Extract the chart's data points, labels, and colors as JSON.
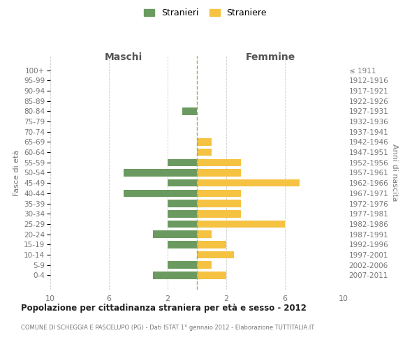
{
  "age_groups": [
    "100+",
    "95-99",
    "90-94",
    "85-89",
    "80-84",
    "75-79",
    "70-74",
    "65-69",
    "60-64",
    "55-59",
    "50-54",
    "45-49",
    "40-44",
    "35-39",
    "30-34",
    "25-29",
    "20-24",
    "15-19",
    "10-14",
    "5-9",
    "0-4"
  ],
  "birth_years": [
    "≤ 1911",
    "1912-1916",
    "1917-1921",
    "1922-1926",
    "1927-1931",
    "1932-1936",
    "1937-1941",
    "1942-1946",
    "1947-1951",
    "1952-1956",
    "1957-1961",
    "1962-1966",
    "1967-1971",
    "1972-1976",
    "1977-1981",
    "1982-1986",
    "1987-1991",
    "1992-1996",
    "1997-2001",
    "2002-2006",
    "2007-2011"
  ],
  "maschi": [
    0,
    0,
    0,
    0,
    1,
    0,
    0,
    0,
    0,
    2,
    5,
    2,
    5,
    2,
    2,
    2,
    3,
    2,
    0,
    2,
    3
  ],
  "femmine": [
    0,
    0,
    0,
    0,
    0,
    0,
    0,
    1,
    1,
    3,
    3,
    7,
    3,
    3,
    3,
    6,
    1,
    2,
    2.5,
    1,
    2
  ],
  "color_maschi": "#6a9a5f",
  "color_femmine": "#f5c242",
  "title": "Popolazione per cittadinanza straniera per età e sesso - 2012",
  "subtitle": "COMUNE DI SCHEGGIA E PASCELUPO (PG) - Dati ISTAT 1° gennaio 2012 - Elaborazione TUTTITALIA.IT",
  "ylabel_left": "Fasce di età",
  "ylabel_right": "Anni di nascita",
  "header_left": "Maschi",
  "header_right": "Femmine",
  "legend_stranieri": "Stranieri",
  "legend_straniere": "Straniere",
  "xlim": 10,
  "background_color": "#ffffff",
  "grid_color": "#cccccc"
}
